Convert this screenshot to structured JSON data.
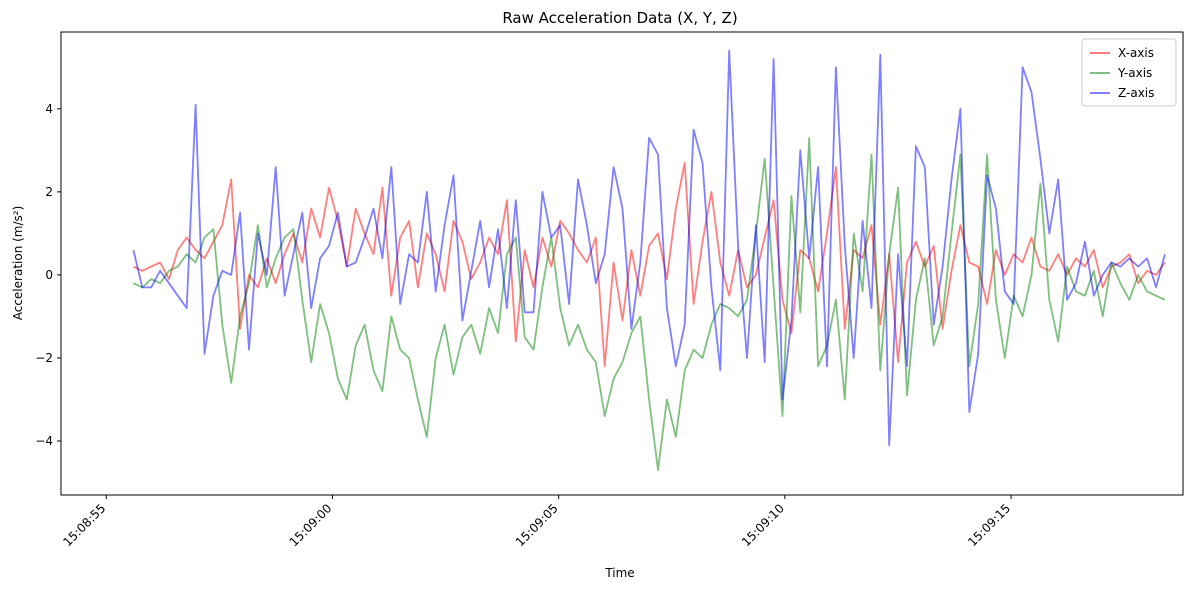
{
  "chart_data": {
    "type": "line",
    "title": "Raw Acceleration Data (X, Y, Z)",
    "xlabel": "Time",
    "ylabel": "Acceleration (m/s²)",
    "x_start": "15:08:55.6",
    "x_end": "15:09:18.4",
    "sample_step_seconds": 0.2,
    "xlim": [
      "15:08:54.0",
      "15:09:18.8"
    ],
    "ylim": [
      -5.3,
      5.85
    ],
    "x_ticks": [
      "15:08:55",
      "15:09:00",
      "15:09:05",
      "15:09:10",
      "15:09:15"
    ],
    "y_ticks": [
      -4,
      -2,
      0,
      2,
      4
    ],
    "legend_position": "top-right",
    "grid": false,
    "series": [
      {
        "name": "X-axis",
        "color": "#ff0000",
        "values": [
          0.2,
          0.1,
          0.2,
          0.3,
          -0.1,
          0.6,
          0.9,
          0.6,
          0.4,
          0.8,
          1.2,
          2.3,
          -1.3,
          0.0,
          -0.3,
          0.4,
          -0.2,
          0.5,
          1.0,
          0.3,
          1.6,
          0.9,
          2.1,
          1.3,
          0.2,
          1.6,
          1.0,
          0.5,
          2.1,
          -0.5,
          0.9,
          1.3,
          -0.3,
          1.0,
          0.5,
          -0.4,
          1.3,
          0.8,
          -0.1,
          0.3,
          0.9,
          0.5,
          1.8,
          -1.6,
          0.6,
          -0.3,
          0.9,
          0.2,
          1.3,
          1.0,
          0.6,
          0.3,
          0.9,
          -2.2,
          0.3,
          -1.1,
          0.6,
          -0.5,
          0.7,
          1.0,
          -0.1,
          1.6,
          2.7,
          -0.7,
          0.8,
          2.0,
          0.3,
          -0.5,
          0.6,
          -0.3,
          0.0,
          0.9,
          1.8,
          -0.6,
          -1.4,
          0.6,
          0.4,
          -0.4,
          1.0,
          2.6,
          -1.3,
          0.6,
          0.4,
          1.2,
          -1.2,
          0.5,
          -2.1,
          0.3,
          0.8,
          0.2,
          0.7,
          -1.3,
          0.1,
          1.2,
          0.3,
          0.2,
          -0.7,
          0.6,
          0.0,
          0.5,
          0.3,
          0.9,
          0.2,
          0.1,
          0.5,
          0.0,
          0.4,
          0.2,
          0.6,
          -0.3,
          0.2,
          0.3,
          0.5,
          -0.2,
          0.1,
          0.0,
          0.3
        ]
      },
      {
        "name": "Y-axis",
        "color": "#008000",
        "values": [
          -0.2,
          -0.3,
          -0.1,
          -0.2,
          0.1,
          0.2,
          0.5,
          0.3,
          0.9,
          1.1,
          -1.2,
          -2.6,
          -1.0,
          -0.2,
          1.2,
          -0.3,
          0.4,
          0.9,
          1.1,
          -0.6,
          -2.1,
          -0.7,
          -1.4,
          -2.5,
          -3.0,
          -1.7,
          -1.2,
          -2.3,
          -2.8,
          -1.0,
          -1.8,
          -2.0,
          -3.0,
          -3.9,
          -2.0,
          -1.2,
          -2.4,
          -1.5,
          -1.2,
          -1.9,
          -0.8,
          -1.4,
          0.5,
          0.9,
          -1.5,
          -1.8,
          -0.3,
          0.9,
          -0.8,
          -1.7,
          -1.2,
          -1.8,
          -2.1,
          -3.4,
          -2.5,
          -2.1,
          -1.4,
          -1.0,
          -3.0,
          -4.7,
          -3.0,
          -3.9,
          -2.3,
          -1.8,
          -2.0,
          -1.2,
          -0.7,
          -0.8,
          -1.0,
          -0.6,
          1.0,
          2.8,
          -0.3,
          -3.4,
          1.9,
          -0.9,
          3.3,
          -2.2,
          -1.7,
          -0.6,
          -3.0,
          1.0,
          -0.4,
          2.9,
          -2.3,
          0.5,
          2.1,
          -2.9,
          -0.6,
          0.4,
          -1.7,
          -1.0,
          1.0,
          2.9,
          -2.2,
          -0.7,
          2.9,
          -0.6,
          -2.0,
          -0.5,
          -1.0,
          0.0,
          2.2,
          -0.6,
          -1.6,
          0.2,
          -0.4,
          -0.5,
          0.1,
          -1.0,
          0.3,
          -0.2,
          -0.6,
          0.0,
          -0.4,
          -0.5,
          -0.6
        ]
      },
      {
        "name": "Z-axis",
        "color": "#0000ff",
        "values": [
          0.6,
          -0.3,
          -0.3,
          0.1,
          -0.2,
          -0.5,
          -0.8,
          4.1,
          -1.9,
          -0.5,
          0.1,
          0.0,
          1.5,
          -1.8,
          1.0,
          0.0,
          2.6,
          -0.5,
          0.5,
          1.5,
          -0.8,
          0.4,
          0.7,
          1.5,
          0.2,
          0.3,
          0.9,
          1.6,
          0.4,
          2.6,
          -0.7,
          0.5,
          0.3,
          2.0,
          -0.4,
          1.2,
          2.4,
          -1.1,
          0.1,
          1.3,
          -0.3,
          1.1,
          -0.8,
          1.8,
          -0.9,
          -0.9,
          2.0,
          0.9,
          1.2,
          -0.7,
          2.3,
          1.2,
          -0.2,
          0.5,
          2.6,
          1.6,
          -1.3,
          0.3,
          3.3,
          2.9,
          -0.8,
          -2.2,
          -1.2,
          3.5,
          2.7,
          -0.3,
          -2.3,
          5.4,
          0.7,
          -2.0,
          1.2,
          -2.1,
          5.2,
          -3.0,
          -1.1,
          3.0,
          0.4,
          2.6,
          -2.2,
          5.0,
          0.7,
          -2.0,
          1.3,
          -0.8,
          5.3,
          -4.1,
          0.5,
          -2.2,
          3.1,
          2.6,
          -1.2,
          0.2,
          2.3,
          4.0,
          -3.3,
          -1.9,
          2.4,
          1.6,
          -0.4,
          -0.7,
          5.0,
          4.4,
          2.8,
          1.0,
          2.3,
          -0.6,
          -0.2,
          0.8,
          -0.5,
          0.0,
          0.3,
          0.2,
          0.4,
          0.2,
          0.4,
          -0.3,
          0.5
        ]
      }
    ]
  }
}
